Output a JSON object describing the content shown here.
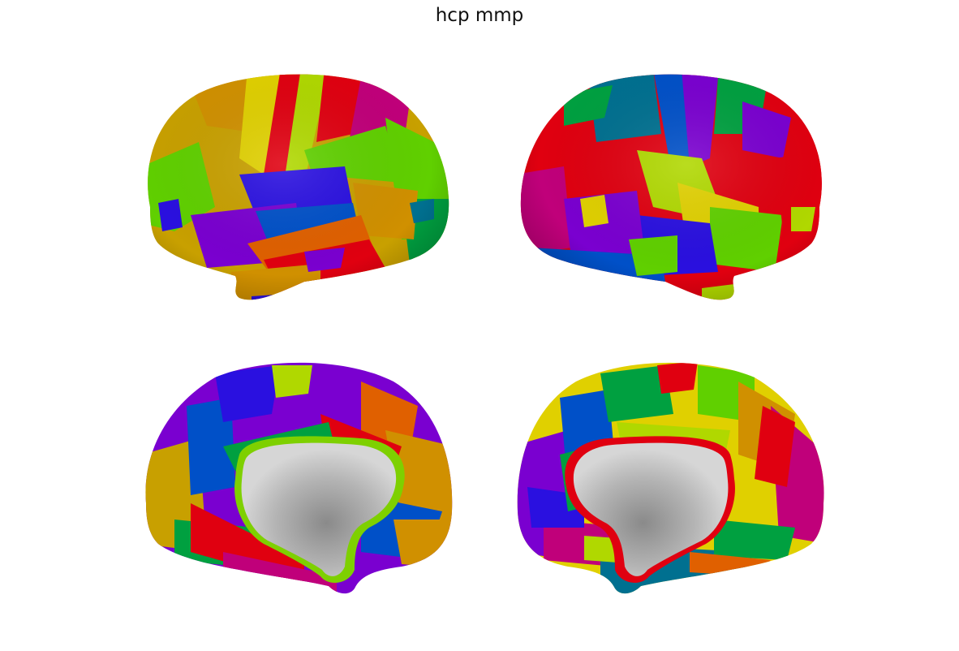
{
  "figure": {
    "title": "hcp mmp"
  },
  "views": [
    {
      "hemisphere": "left",
      "view": "lateral"
    },
    {
      "hemisphere": "right",
      "view": "lateral"
    },
    {
      "hemisphere": "left",
      "view": "medial"
    },
    {
      "hemisphere": "right",
      "view": "medial"
    }
  ],
  "colors": {
    "background": "#ffffff",
    "medial_wall": "#b4b4b4",
    "parcel_palette": [
      "#e00010",
      "#c0007a",
      "#7a00d0",
      "#2a10e0",
      "#0050c8",
      "#007090",
      "#00a040",
      "#60d000",
      "#b0d800",
      "#e0d000",
      "#d09000",
      "#e06000"
    ]
  }
}
